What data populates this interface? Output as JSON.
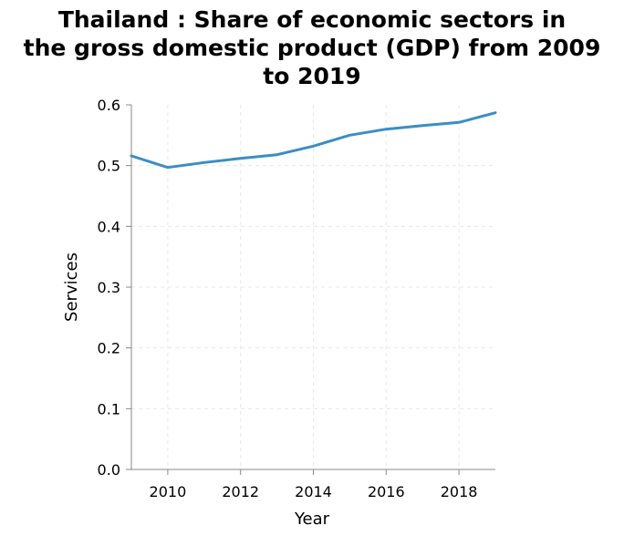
{
  "chart_data": {
    "type": "line",
    "title_lines": [
      "Thailand : Share of economic sectors in",
      "the gross domestic product (GDP) from 2009",
      "to 2019"
    ],
    "xlabel": "Year",
    "ylabel": "Services",
    "xlim": [
      2009,
      2019
    ],
    "ylim": [
      0,
      0.6
    ],
    "x_ticks": [
      "2010",
      "2012",
      "2014",
      "2016",
      "2018"
    ],
    "y_ticks": [
      "0.0",
      "0.1",
      "0.2",
      "0.3",
      "0.4",
      "0.5",
      "0.6"
    ],
    "grid": true,
    "series": [
      {
        "color": "#3b8ec2",
        "x": [
          2009,
          2010,
          2011,
          2012,
          2013,
          2014,
          2015,
          2016,
          2017,
          2018,
          2019
        ],
        "values": [
          0.516,
          0.497,
          0.505,
          0.512,
          0.518,
          0.532,
          0.55,
          0.56,
          0.566,
          0.571,
          0.587
        ]
      }
    ]
  }
}
